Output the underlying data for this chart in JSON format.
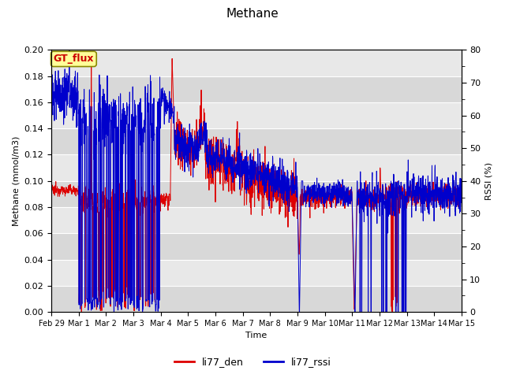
{
  "title": "Methane",
  "ylabel_left": "Methane (mmol/m3)",
  "ylabel_right": "RSSI (%)",
  "xlabel": "Time",
  "annotation": "GT_flux",
  "ylim_left": [
    0.0,
    0.2
  ],
  "ylim_right": [
    0,
    80
  ],
  "yticks_left": [
    0.0,
    0.02,
    0.04,
    0.06,
    0.08,
    0.1,
    0.12,
    0.14,
    0.16,
    0.18,
    0.2
  ],
  "yticks_right_major": [
    0,
    10,
    20,
    30,
    40,
    50,
    60,
    70,
    80
  ],
  "yticks_right_minor": [
    5,
    15,
    25,
    35,
    45,
    55,
    65,
    75
  ],
  "xtick_labels": [
    "Feb 29",
    "Mar 1",
    "Mar 2",
    "Mar 3",
    "Mar 4",
    "Mar 5",
    "Mar 6",
    "Mar 7",
    "Mar 8",
    "Mar 9",
    "Mar 10",
    "Mar 11",
    "Mar 12",
    "Mar 13",
    "Mar 14",
    "Mar 15"
  ],
  "color_den": "#dd0000",
  "color_rssi": "#0000cc",
  "bg_color_dark": "#d8d8d8",
  "bg_color_light": "#e8e8e8",
  "annotation_bg": "#ffff99",
  "annotation_border": "#888800",
  "annotation_text_color": "#cc0000",
  "linewidth": 0.7,
  "fig_width": 6.4,
  "fig_height": 4.8,
  "fig_dpi": 100
}
